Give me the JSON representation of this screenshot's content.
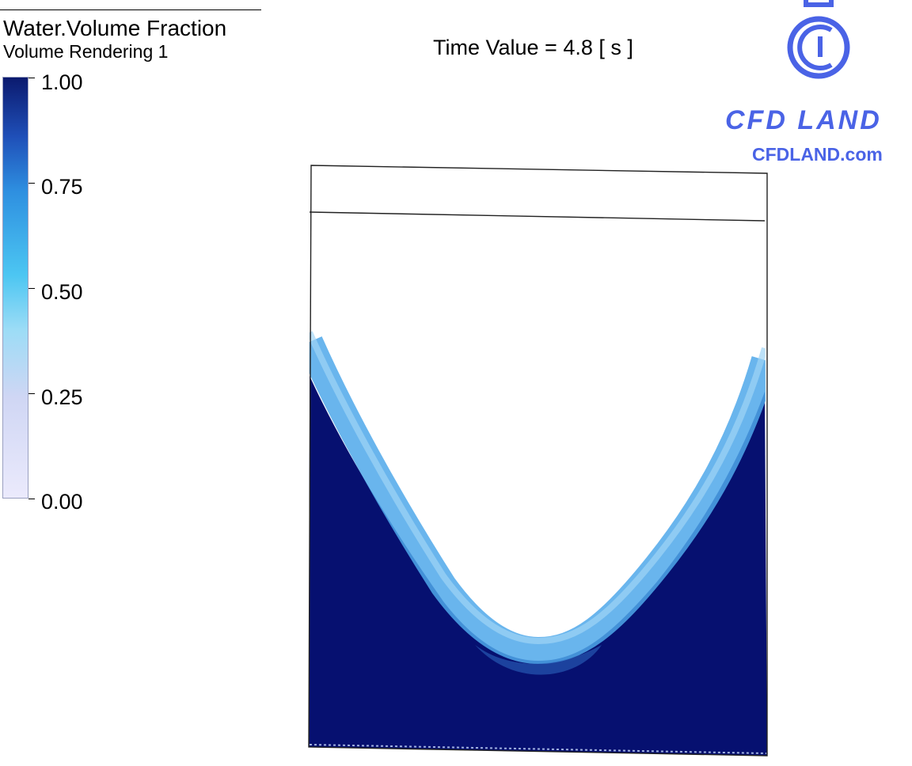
{
  "legend": {
    "title": "Water.Volume Fraction",
    "subtitle": "Volume Rendering 1",
    "ticks": [
      "1.00",
      "0.75",
      "0.50",
      "0.25",
      "0.00"
    ],
    "colors": {
      "max": "#0b1a6e",
      "high": "#2e8fe0",
      "mid": "#4cc6f2",
      "low": "#cfd6f4",
      "min": "#ebeafc"
    }
  },
  "annotation": {
    "time_value": "Time Value = 4.8 [ s ]"
  },
  "logo": {
    "brand": "CFD LAND",
    "url": "CFDLAND.com",
    "icon": "cfd-land-logo-icon",
    "color": "#4a63e6"
  },
  "simulation": {
    "fluid_color": "#061070",
    "interface_color": "#4fa8ea"
  }
}
